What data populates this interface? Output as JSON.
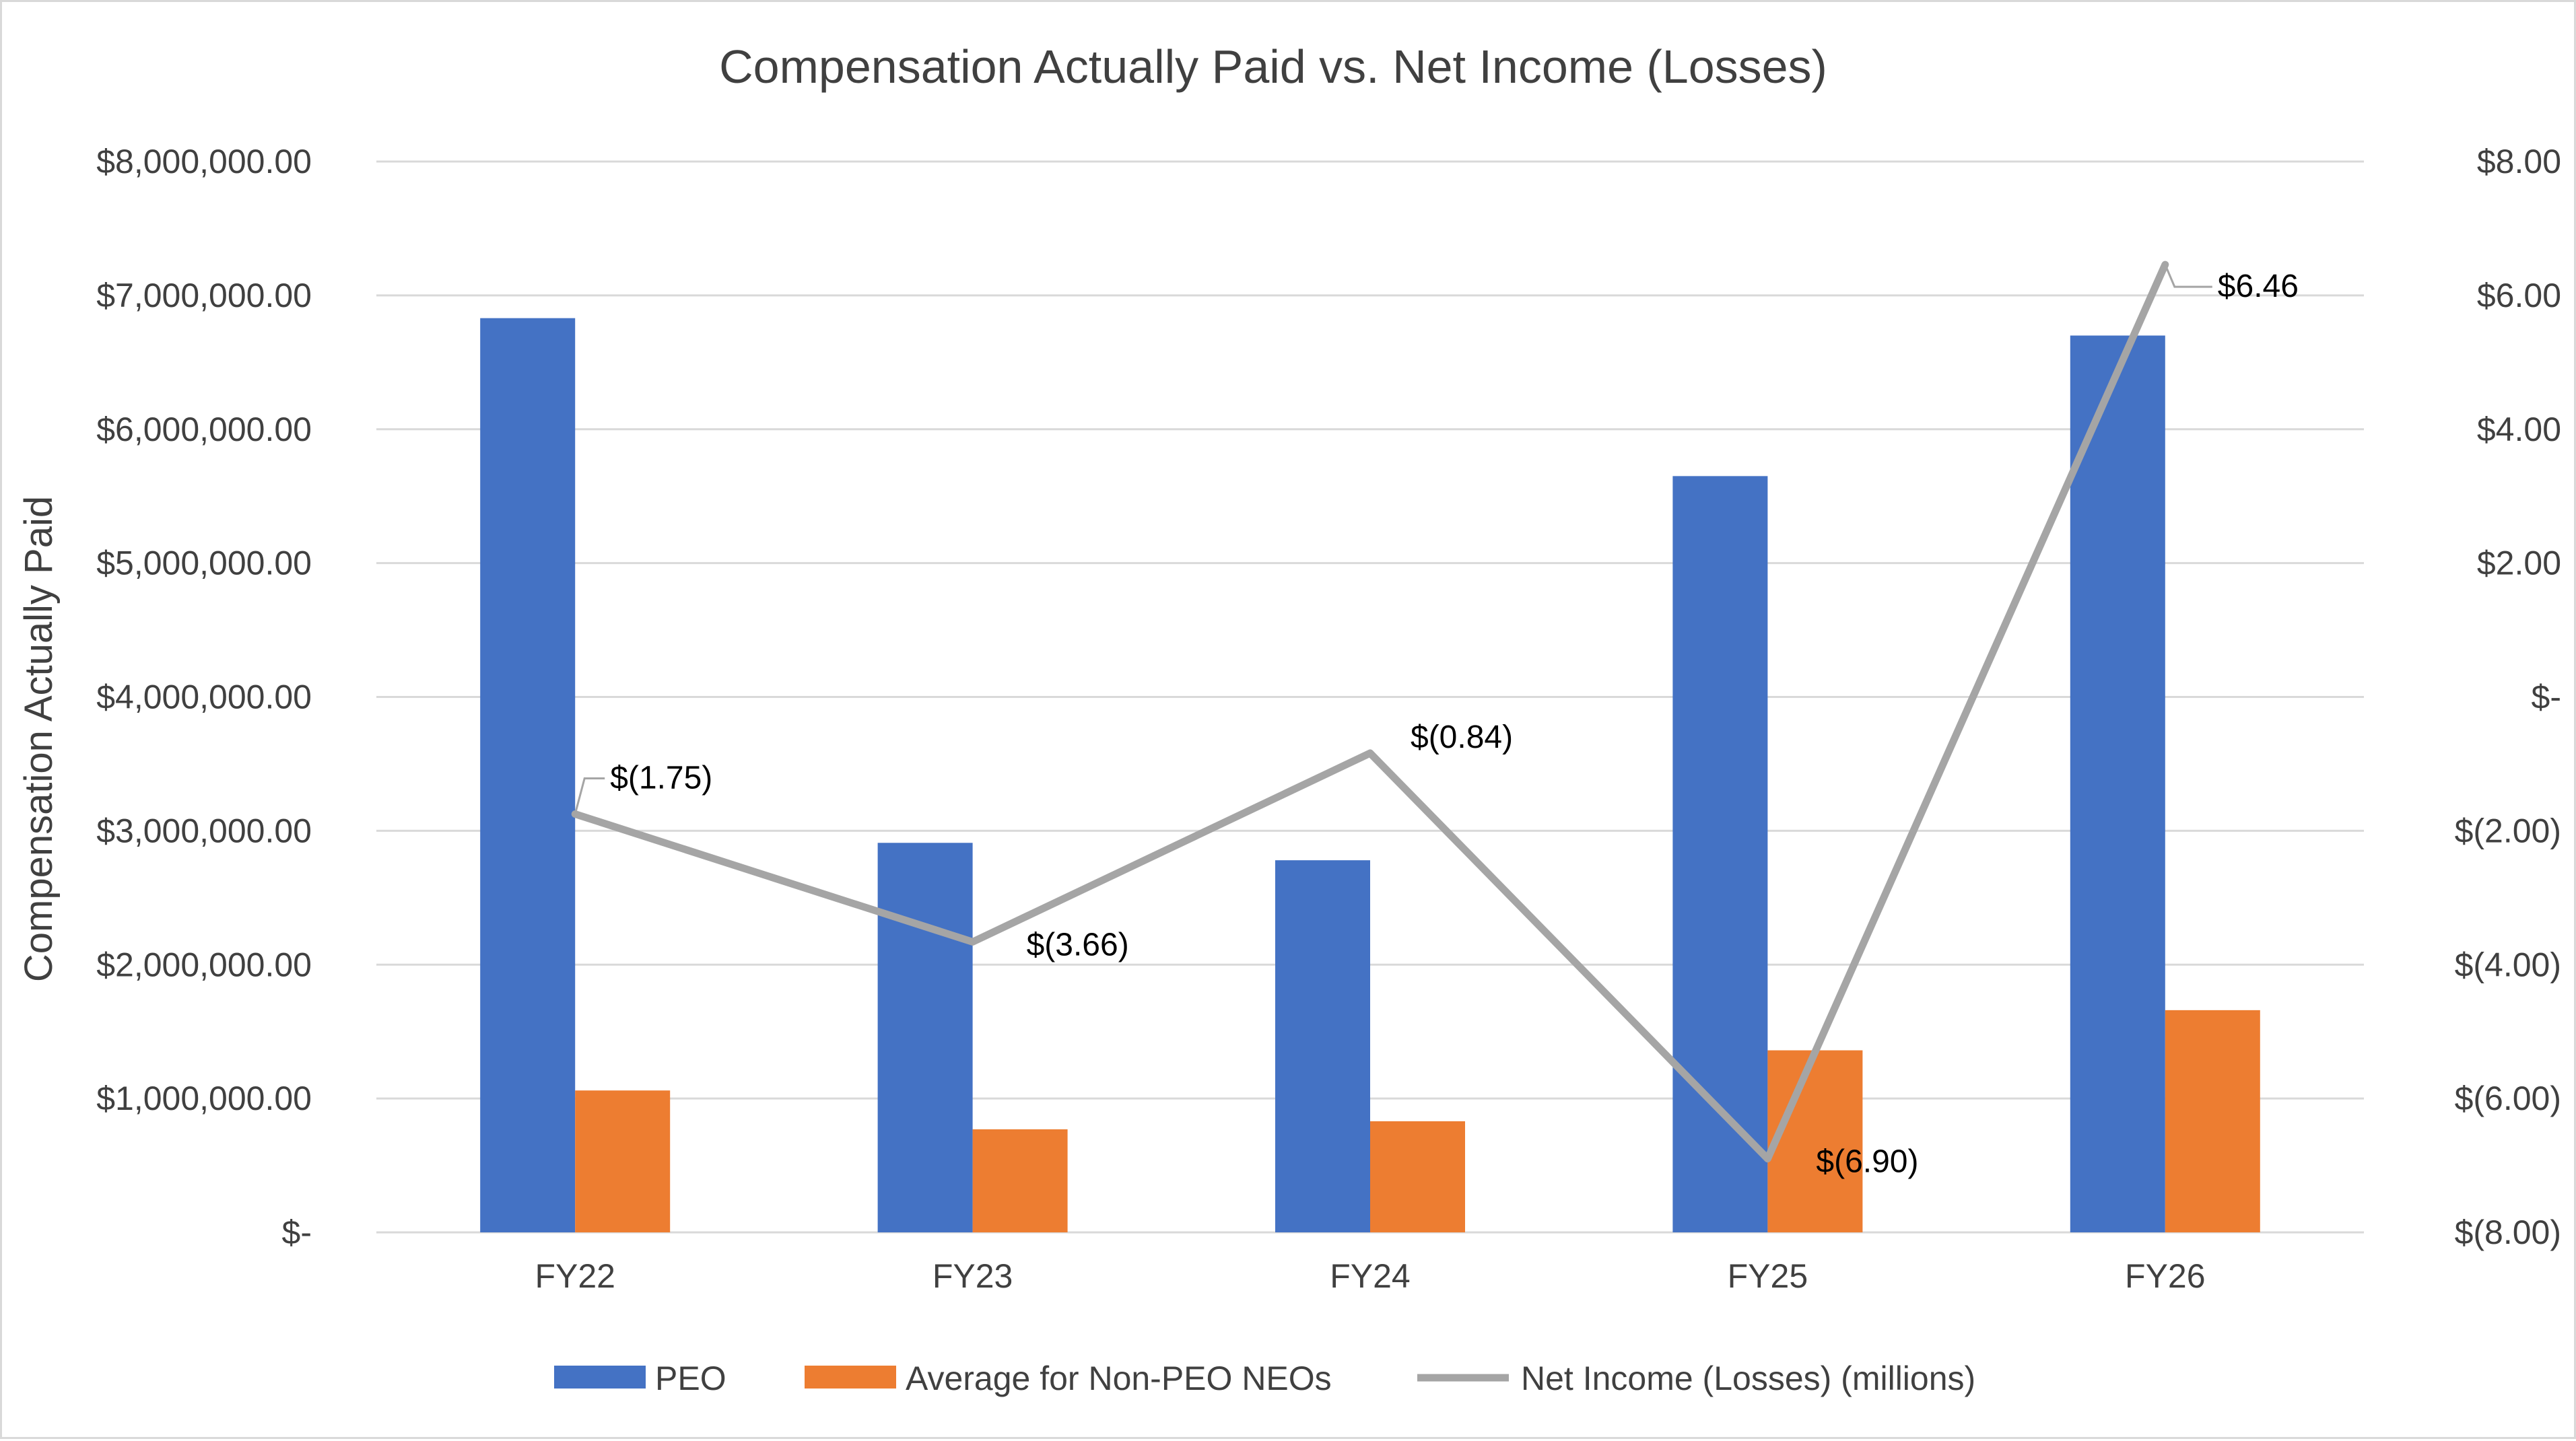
{
  "chart_data": {
    "type": "bar",
    "title": "Compensation Actually Paid vs. Net Income (Losses)",
    "categories": [
      "FY22",
      "FY23",
      "FY24",
      "FY25",
      "FY26"
    ],
    "series": [
      {
        "name": "PEO",
        "type": "bar",
        "axis": "left",
        "color": "#4472C4",
        "values": [
          6830000,
          2910000,
          2780000,
          5650000,
          6700000
        ]
      },
      {
        "name": "Average for Non-PEO NEOs",
        "type": "bar",
        "axis": "left",
        "color": "#ED7D31",
        "values": [
          1060000,
          770000,
          830000,
          1360000,
          1660000
        ]
      },
      {
        "name": "Net Income (Losses) (millions)",
        "type": "line",
        "axis": "right",
        "color": "#A5A5A5",
        "values": [
          -1.75,
          -3.66,
          -0.84,
          -6.9,
          6.46
        ],
        "data_labels": [
          "$(1.75)",
          "$(3.66)",
          "$(0.84)",
          "$(6.90)",
          "$6.46"
        ]
      }
    ],
    "ylabel": "Compensation Actually Paid",
    "xlabel": "",
    "ylim": [
      0,
      8000000
    ],
    "y_ticks": [
      0,
      1000000,
      2000000,
      3000000,
      4000000,
      5000000,
      6000000,
      7000000,
      8000000
    ],
    "y_tick_labels": [
      "$-",
      "$1,000,000.00",
      "$2,000,000.00",
      "$3,000,000.00",
      "$4,000,000.00",
      "$5,000,000.00",
      "$6,000,000.00",
      "$7,000,000.00",
      "$8,000,000.00"
    ],
    "y2lim": [
      -8,
      8
    ],
    "y2_ticks": [
      -8,
      -6,
      -4,
      -2,
      0,
      2,
      4,
      6,
      8
    ],
    "y2_tick_labels": [
      "$(8.00)",
      "$(6.00)",
      "$(4.00)",
      "$(2.00)",
      "$-",
      "$2.00",
      "$4.00",
      "$6.00",
      "$8.00"
    ],
    "grid": true,
    "legend_position": "bottom"
  }
}
